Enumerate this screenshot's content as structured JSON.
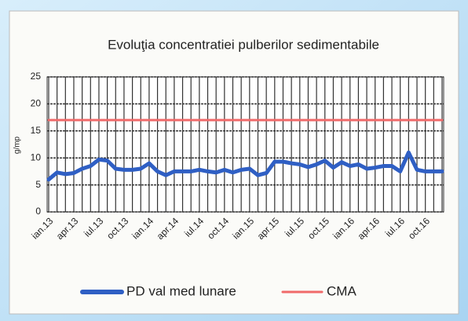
{
  "chart_data": {
    "type": "line",
    "title": "Evoluţia concentratiei  pulberilor sedimentabile",
    "y_label": "g/mp",
    "categories": [
      "ian.13",
      null,
      null,
      "apr.13",
      null,
      null,
      "iul.13",
      null,
      null,
      "oct.13",
      null,
      null,
      "ian.14",
      null,
      null,
      "apr.14",
      null,
      null,
      "iul.14",
      null,
      null,
      "oct.14",
      null,
      null,
      "ian.15",
      null,
      null,
      "apr.15",
      null,
      null,
      "iul.15",
      null,
      null,
      "oct.15",
      null,
      null,
      "ian.16",
      null,
      null,
      "apr.16",
      null,
      null,
      "iul.16",
      null,
      null,
      "oct.16",
      null,
      null
    ],
    "series": [
      {
        "name": "PD val med lunare",
        "color": "#2f5fc4",
        "values": [
          6,
          7.3,
          7,
          7.2,
          8,
          8.5,
          9.7,
          9.5,
          8,
          7.8,
          7.8,
          8,
          9,
          7.5,
          6.8,
          7.5,
          7.5,
          7.5,
          7.8,
          7.5,
          7.3,
          7.8,
          7.3,
          7.8,
          8,
          6.8,
          7.2,
          9.3,
          9.3,
          9,
          8.8,
          8.3,
          8.8,
          9.5,
          8.2,
          9.2,
          8.5,
          8.8,
          8,
          8.2,
          8.5,
          8.5,
          7.5,
          11,
          7.8,
          7.5,
          7.5,
          7.5
        ]
      },
      {
        "name": "CMA",
        "color": "#f06a6a",
        "values": [
          17,
          17,
          17,
          17,
          17,
          17,
          17,
          17,
          17,
          17,
          17,
          17,
          17,
          17,
          17,
          17,
          17,
          17,
          17,
          17,
          17,
          17,
          17,
          17,
          17,
          17,
          17,
          17,
          17,
          17,
          17,
          17,
          17,
          17,
          17,
          17,
          17,
          17,
          17,
          17,
          17,
          17,
          17,
          17,
          17,
          17,
          17,
          17
        ]
      }
    ],
    "ylim": [
      0,
      25
    ],
    "yticks": [
      0,
      5,
      10,
      15,
      20,
      25
    ],
    "grid": true,
    "legend": "bottom"
  }
}
